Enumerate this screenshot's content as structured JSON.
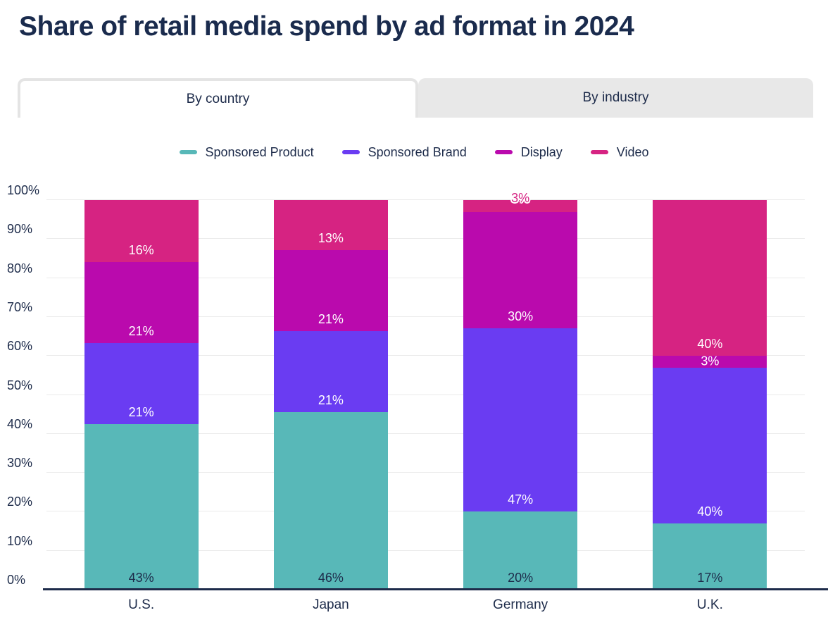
{
  "page": {
    "title": "Share of retail media spend by ad format in 2024"
  },
  "tabs": [
    {
      "label": "By country",
      "active": true
    },
    {
      "label": "By industry",
      "active": false
    }
  ],
  "chart_data": {
    "type": "bar",
    "stacked": true,
    "orientation": "vertical",
    "categories": [
      "U.S.",
      "Japan",
      "Germany",
      "U.K."
    ],
    "series": [
      {
        "name": "Sponsored Product",
        "color": "#58b8b8",
        "label_color": "#1d2b4a",
        "values": [
          43,
          46,
          20,
          17
        ]
      },
      {
        "name": "Sponsored Brand",
        "color": "#6a3cf2",
        "label_color": "#ffffff",
        "values": [
          21,
          21,
          47,
          40
        ]
      },
      {
        "name": "Display",
        "color": "#ba0aad",
        "label_color": "#ffffff",
        "values": [
          21,
          21,
          30,
          3
        ]
      },
      {
        "name": "Video",
        "color": "#d62382",
        "label_color": "#ffffff",
        "values": [
          16,
          13,
          3,
          40
        ]
      }
    ],
    "value_suffix": "%",
    "y_ticks": [
      "0%",
      "10%",
      "20%",
      "30%",
      "40%",
      "50%",
      "60%",
      "70%",
      "80%",
      "90%",
      "100%"
    ],
    "ylim": [
      0,
      100
    ],
    "grid": true,
    "legend_position": "top"
  },
  "colors": {
    "text_navy": "#1d2b4a",
    "gridline": "#ebebeb",
    "axis_line": "#1d2b4a",
    "tab_inactive_bg": "#e8e8e8",
    "tab_active_border": "#e4e4e4",
    "background": "#ffffff"
  }
}
